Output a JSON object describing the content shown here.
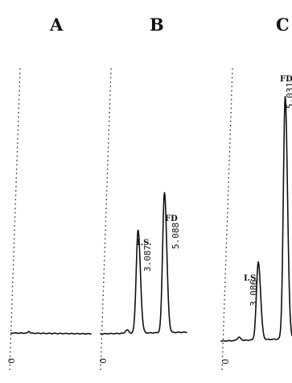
{
  "chart_data": [
    {
      "type": "line",
      "panel": "A",
      "x_start_label": "0",
      "peaks": []
    },
    {
      "type": "line",
      "panel": "B",
      "x_start_label": "0",
      "peaks": [
        {
          "name": "I.S.",
          "rt": "3.087",
          "x": 3.087,
          "height": 0.44
        },
        {
          "name": "FD",
          "rt": "5.088",
          "x": 5.088,
          "height": 0.6
        }
      ]
    },
    {
      "type": "line",
      "panel": "C",
      "x_start_label": "0",
      "peaks": [
        {
          "name": "I.S.",
          "rt": "3.086",
          "x": 3.086,
          "height": 0.28
        },
        {
          "name": "FD",
          "rt": "5.031",
          "x": 5.031,
          "height": 0.87
        }
      ]
    }
  ],
  "colors": {
    "ink": "#111111",
    "background": "#ffffff"
  }
}
